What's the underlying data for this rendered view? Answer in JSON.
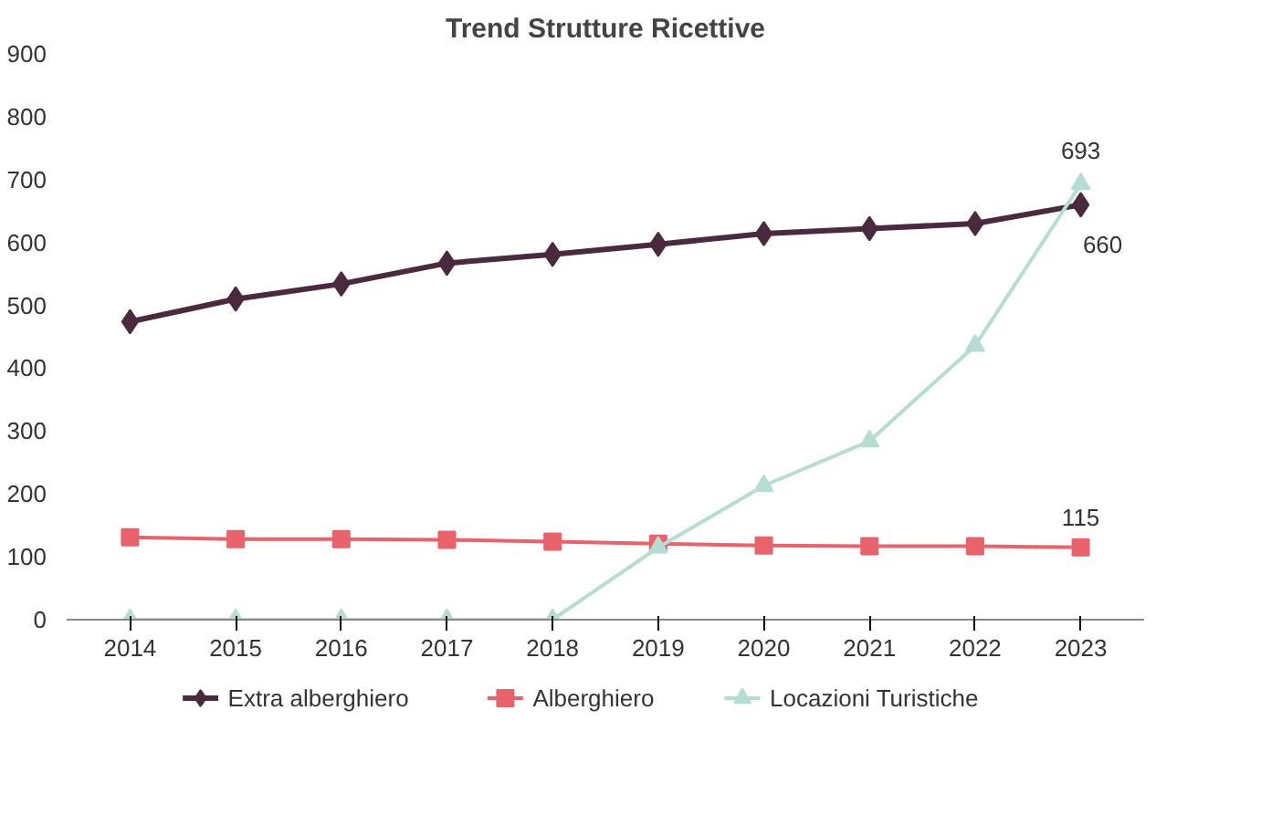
{
  "chart_data": {
    "type": "line",
    "title": "Trend Strutture Ricettive",
    "categories": [
      "2014",
      "2015",
      "2016",
      "2017",
      "2018",
      "2019",
      "2020",
      "2021",
      "2022",
      "2023"
    ],
    "ylim": [
      0,
      900
    ],
    "yticks": [
      0,
      100,
      200,
      300,
      400,
      500,
      600,
      700,
      800,
      900
    ],
    "grid": false,
    "legend": "bottom",
    "series": [
      {
        "name": "Extra alberghiero",
        "color": "#4a2a3f",
        "marker": "diamond",
        "values": [
          474,
          510,
          534,
          567,
          581,
          597,
          614,
          622,
          630,
          660
        ],
        "value_labels": [
          null,
          null,
          null,
          null,
          null,
          null,
          null,
          null,
          null,
          "660"
        ]
      },
      {
        "name": "Alberghiero",
        "color": "#e8636b",
        "marker": "square",
        "values": [
          131,
          128,
          128,
          127,
          124,
          121,
          118,
          117,
          117,
          115
        ],
        "value_labels": [
          null,
          null,
          null,
          null,
          null,
          null,
          null,
          null,
          null,
          "115"
        ]
      },
      {
        "name": "Locazioni Turistiche",
        "color": "#b5ddd3",
        "marker": "triangle",
        "values": [
          0,
          0,
          0,
          0,
          0,
          115,
          213,
          284,
          436,
          693
        ],
        "value_labels": [
          null,
          null,
          null,
          null,
          null,
          null,
          null,
          null,
          null,
          "693"
        ]
      }
    ]
  }
}
